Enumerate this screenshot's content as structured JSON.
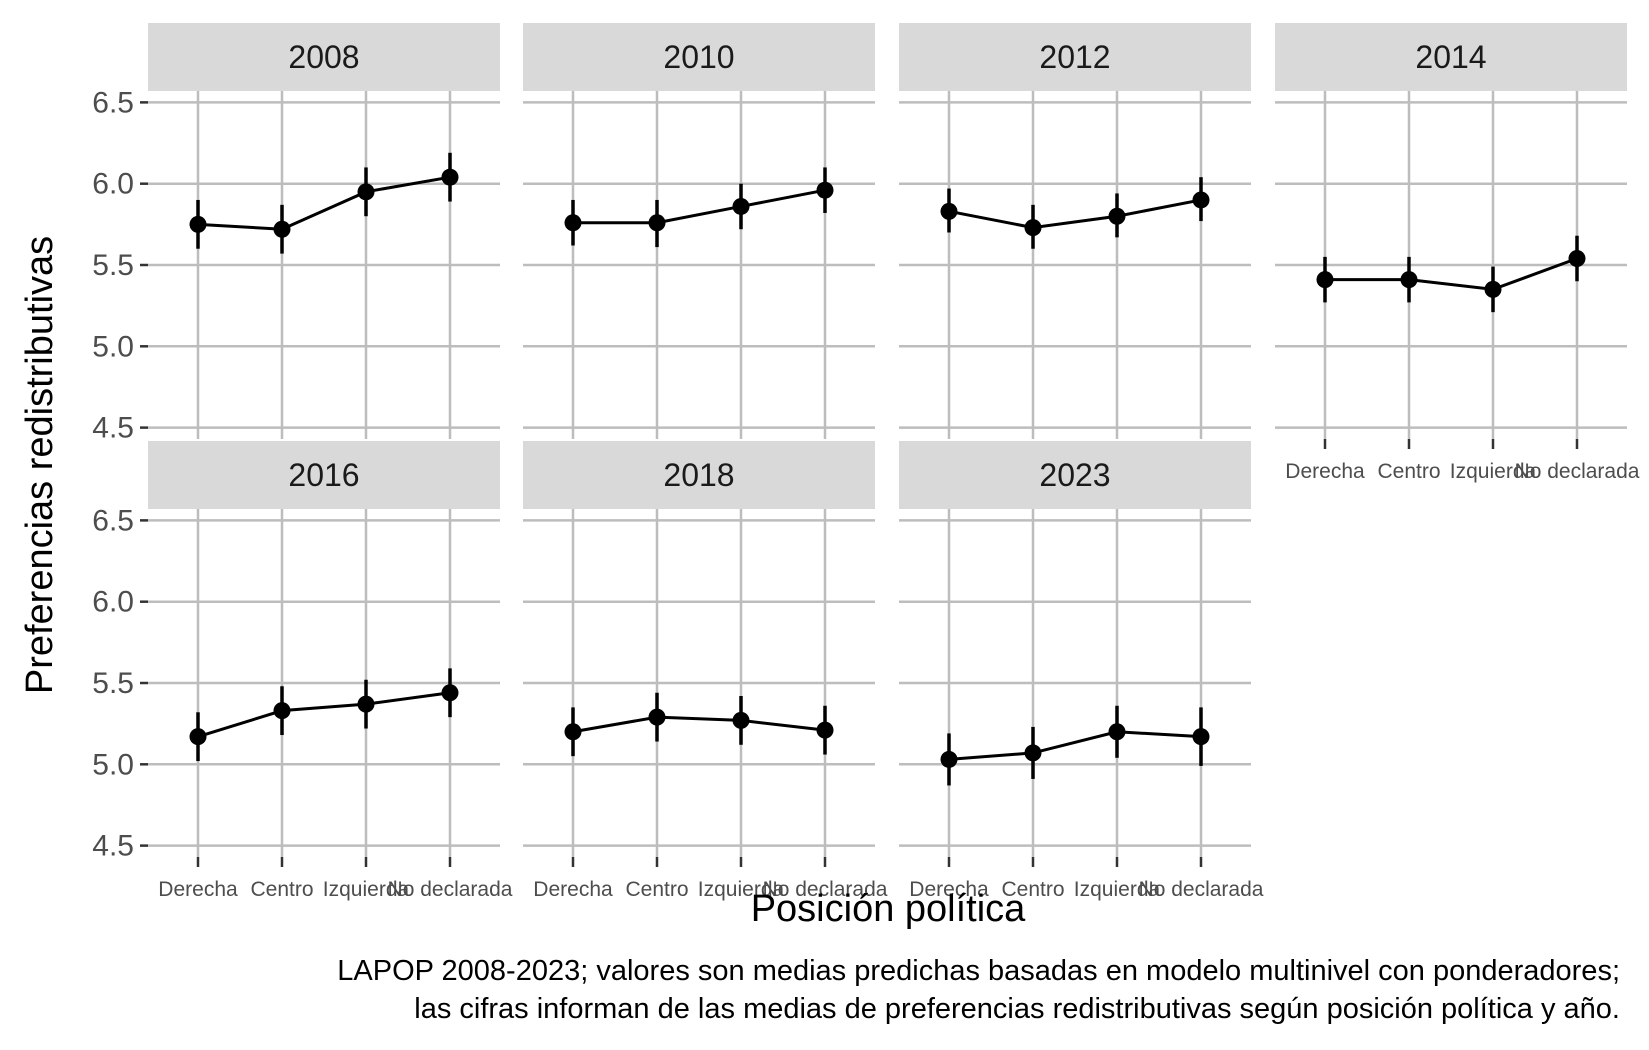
{
  "chart_data": {
    "type": "line",
    "facet_by": "year",
    "xlabel": "Posición política",
    "ylabel": "Preferencias redistributivas",
    "categories": [
      "Derecha",
      "Centro",
      "Izquierda",
      "No declarada"
    ],
    "yticks": [
      "4.5",
      "5.0",
      "5.5",
      "6.0",
      "6.5"
    ],
    "ylim": [
      4.43,
      6.57
    ],
    "grid": true,
    "error_bars": true,
    "caption": [
      "LAPOP 2008-2023; valores son medias predichas basadas en modelo multinivel con ponderadores;",
      "las cifras informan de las medias de preferencias redistributivas según posición política y año."
    ],
    "panels": [
      {
        "label": "2008",
        "values": [
          5.75,
          5.72,
          5.95,
          6.04
        ],
        "lower": [
          5.6,
          5.57,
          5.8,
          5.89
        ],
        "upper": [
          5.9,
          5.87,
          6.1,
          6.19
        ]
      },
      {
        "label": "2010",
        "values": [
          5.76,
          5.76,
          5.86,
          5.96
        ],
        "lower": [
          5.62,
          5.61,
          5.72,
          5.82
        ],
        "upper": [
          5.9,
          5.9,
          6.0,
          6.1
        ]
      },
      {
        "label": "2012",
        "values": [
          5.83,
          5.73,
          5.8,
          5.9
        ],
        "lower": [
          5.7,
          5.6,
          5.67,
          5.77
        ],
        "upper": [
          5.97,
          5.87,
          5.94,
          6.04
        ]
      },
      {
        "label": "2014",
        "values": [
          5.41,
          5.41,
          5.35,
          5.54
        ],
        "lower": [
          5.27,
          5.27,
          5.21,
          5.4
        ],
        "upper": [
          5.55,
          5.55,
          5.49,
          5.68
        ]
      },
      {
        "label": "2016",
        "values": [
          5.17,
          5.33,
          5.37,
          5.44
        ],
        "lower": [
          5.02,
          5.18,
          5.22,
          5.29
        ],
        "upper": [
          5.32,
          5.48,
          5.52,
          5.59
        ]
      },
      {
        "label": "2018",
        "values": [
          5.2,
          5.29,
          5.27,
          5.21
        ],
        "lower": [
          5.05,
          5.14,
          5.12,
          5.06
        ],
        "upper": [
          5.35,
          5.44,
          5.42,
          5.36
        ]
      },
      {
        "label": "2023",
        "values": [
          5.03,
          5.07,
          5.2,
          5.17
        ],
        "lower": [
          4.87,
          4.91,
          5.04,
          4.99
        ],
        "upper": [
          5.19,
          5.23,
          5.36,
          5.35
        ]
      }
    ]
  }
}
